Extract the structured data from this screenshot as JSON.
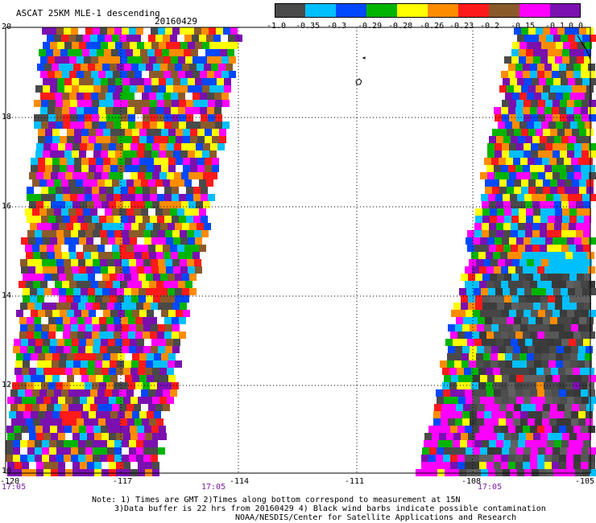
{
  "header": {
    "title": "ASCAT 25KM MLE-1 descending",
    "date": "20160429"
  },
  "colorbar": {
    "segments": [
      "#4a4a4a",
      "#00bfff",
      "#0048ff",
      "#00b400",
      "#ffff00",
      "#ff8c00",
      "#ff1a1a",
      "#8b5a2b",
      "#ff00ff",
      "#7a10b0"
    ],
    "labels": [
      "-1.0",
      "-0.35",
      "-0.3",
      "-0.29",
      "-0.28",
      "-0.26",
      "-0.23",
      "-0.2",
      "-0.15",
      "-0.1",
      "0.0"
    ]
  },
  "map": {
    "lat_labels": [
      "20",
      "18",
      "16",
      "14",
      "12",
      "10"
    ],
    "lon_labels": [
      "-120",
      "-117",
      "-114",
      "-111",
      "-108",
      "-105"
    ],
    "times": [
      "17:05",
      "17:05",
      "17:05"
    ],
    "lat_range": [
      10,
      20
    ],
    "lon_range": [
      -120,
      -105
    ],
    "gridlines": "dotted",
    "west_swath_palette": [
      "#ff1a1a",
      "#ff8c00",
      "#ffff00",
      "#0048ff",
      "#00b400",
      "#ff00ff",
      "#7a10b0",
      "#00bfff",
      "#8b5a2b",
      "#4a4a4a"
    ],
    "east_swath_palette": [
      "#ff1a1a",
      "#ff8c00",
      "#ffff00",
      "#0048ff",
      "#00b400",
      "#ff00ff",
      "#7a10b0",
      "#00bfff",
      "#4a4a4a"
    ],
    "east_gray_shades": [
      "#3c3c3c",
      "#454545",
      "#4e4e4e",
      "#575757",
      "#606060",
      "#383838"
    ]
  },
  "notes": {
    "line1": "Note: 1) Times are GMT 2)Times along bottom correspond to measurement at 15N",
    "line2": "3)Data buffer is 22 hrs from 20160429 4) Black wind barbs indicate possible contamination",
    "line3": "NOAA/NESDIS/Center for Satellite Applications and Research"
  }
}
